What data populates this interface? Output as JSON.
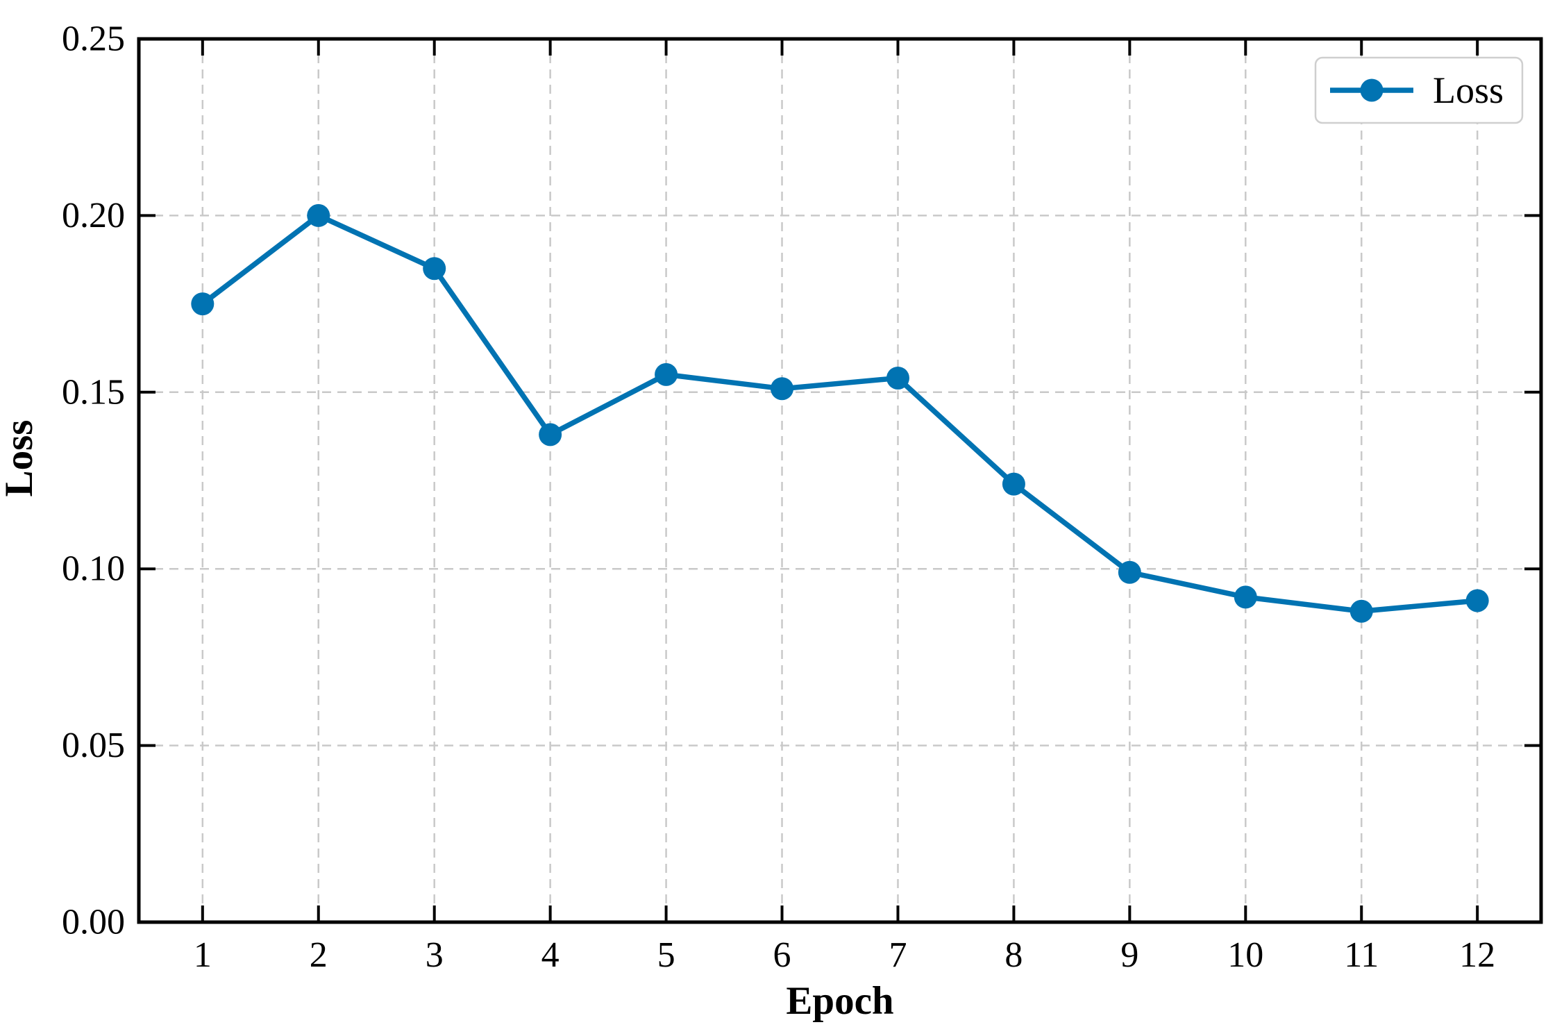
{
  "chart_data": {
    "type": "line",
    "title": "",
    "xlabel": "Epoch",
    "ylabel": "Loss",
    "x": [
      1,
      2,
      3,
      4,
      5,
      6,
      7,
      8,
      9,
      10,
      11,
      12
    ],
    "series": [
      {
        "name": "Loss",
        "values": [
          0.175,
          0.2,
          0.185,
          0.138,
          0.155,
          0.151,
          0.154,
          0.124,
          0.099,
          0.092,
          0.088,
          0.091
        ],
        "color": "#0173b2",
        "marker": "circle"
      }
    ],
    "xlim": [
      0.45,
      12.55
    ],
    "ylim": [
      0.0,
      0.25
    ],
    "xticks": [
      "1",
      "2",
      "3",
      "4",
      "5",
      "6",
      "7",
      "8",
      "9",
      "10",
      "11",
      "12"
    ],
    "yticks": [
      "0.00",
      "0.05",
      "0.10",
      "0.15",
      "0.20",
      "0.25"
    ],
    "ytick_values": [
      0.0,
      0.05,
      0.1,
      0.15,
      0.2,
      0.25
    ],
    "grid": true,
    "grid_style": "dashed",
    "legend": {
      "position": "top-right",
      "entries": [
        "Loss"
      ]
    }
  },
  "colors": {
    "line": "#0173b2",
    "grid": "#c9c9c9",
    "frame": "#000000",
    "legend_border": "#cfcfcf",
    "legend_background": "#ffffff"
  }
}
